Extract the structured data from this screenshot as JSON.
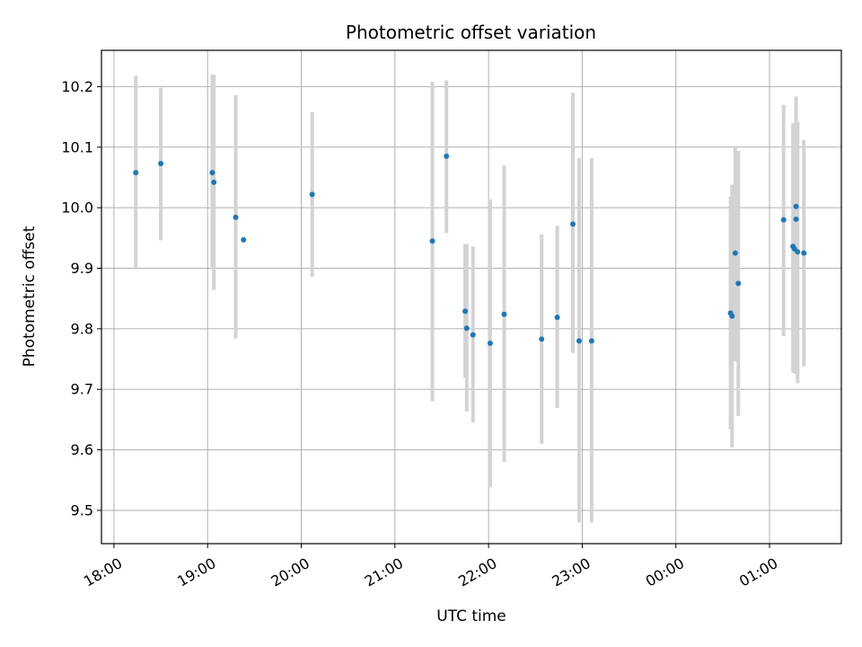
{
  "chart_data": {
    "type": "scatter",
    "title": "Photometric offset variation",
    "xlabel": "UTC time",
    "ylabel": "Photometric offset",
    "x_tick_labels": [
      "18:00",
      "19:00",
      "20:00",
      "21:00",
      "22:00",
      "23:00",
      "00:00",
      "01:00"
    ],
    "y_tick_labels": [
      "9.5",
      "9.6",
      "9.7",
      "9.8",
      "9.9",
      "10.0",
      "10.1",
      "10.2"
    ],
    "y_ticks": [
      9.5,
      9.6,
      9.7,
      9.8,
      9.9,
      10.0,
      10.1,
      10.2
    ],
    "xlim": [
      "17:52",
      "25:46"
    ],
    "ylim": [
      9.445,
      10.26
    ],
    "grid": true,
    "point_color": "#1f77b4",
    "errorbar_color": "#d3d3d3",
    "points": [
      {
        "x": "18:14",
        "y": 10.058,
        "lo": 9.898,
        "hi": 10.218
      },
      {
        "x": "18:30",
        "y": 10.073,
        "lo": 9.946,
        "hi": 10.198
      },
      {
        "x": "19:03",
        "y": 10.058,
        "lo": 9.898,
        "hi": 10.22
      },
      {
        "x": "19:04",
        "y": 10.042,
        "lo": 9.864,
        "hi": 10.22
      },
      {
        "x": "19:18",
        "y": 9.984,
        "lo": 9.784,
        "hi": 10.186
      },
      {
        "x": "19:23",
        "y": 9.947,
        "lo": 9.947,
        "hi": 9.947
      },
      {
        "x": "20:07",
        "y": 10.022,
        "lo": 9.886,
        "hi": 10.158
      },
      {
        "x": "21:24",
        "y": 9.945,
        "lo": 9.68,
        "hi": 10.208
      },
      {
        "x": "21:33",
        "y": 10.085,
        "lo": 9.958,
        "hi": 10.21
      },
      {
        "x": "21:45",
        "y": 9.829,
        "lo": 9.719,
        "hi": 9.94
      },
      {
        "x": "21:46",
        "y": 9.801,
        "lo": 9.663,
        "hi": 9.94
      },
      {
        "x": "21:50",
        "y": 9.79,
        "lo": 9.645,
        "hi": 9.936
      },
      {
        "x": "22:01",
        "y": 9.776,
        "lo": 9.538,
        "hi": 10.014
      },
      {
        "x": "22:10",
        "y": 9.824,
        "lo": 9.58,
        "hi": 10.07
      },
      {
        "x": "22:34",
        "y": 9.783,
        "lo": 9.61,
        "hi": 9.956
      },
      {
        "x": "22:44",
        "y": 9.819,
        "lo": 9.669,
        "hi": 9.97
      },
      {
        "x": "22:54",
        "y": 9.973,
        "lo": 9.76,
        "hi": 10.19
      },
      {
        "x": "22:58",
        "y": 9.78,
        "lo": 9.48,
        "hi": 10.082
      },
      {
        "x": "23:06",
        "y": 9.78,
        "lo": 9.48,
        "hi": 10.082
      },
      {
        "x": "24:35",
        "y": 9.826,
        "lo": 9.634,
        "hi": 10.018
      },
      {
        "x": "24:36",
        "y": 9.821,
        "lo": 9.604,
        "hi": 10.038
      },
      {
        "x": "24:38",
        "y": 9.925,
        "lo": 9.746,
        "hi": 10.102
      },
      {
        "x": "24:40",
        "y": 9.875,
        "lo": 9.656,
        "hi": 10.094
      },
      {
        "x": "25:09",
        "y": 9.98,
        "lo": 9.788,
        "hi": 10.17
      },
      {
        "x": "25:15",
        "y": 9.936,
        "lo": 9.728,
        "hi": 10.14
      },
      {
        "x": "25:16",
        "y": 9.932,
        "lo": 9.726,
        "hi": 10.14
      },
      {
        "x": "25:17",
        "y": 10.002,
        "lo": 9.82,
        "hi": 10.184
      },
      {
        "x": "25:17",
        "y": 9.981,
        "lo": 9.82,
        "hi": 10.142
      },
      {
        "x": "25:18",
        "y": 9.927,
        "lo": 9.71,
        "hi": 10.142
      },
      {
        "x": "25:22",
        "y": 9.925,
        "lo": 9.738,
        "hi": 10.112
      }
    ]
  }
}
